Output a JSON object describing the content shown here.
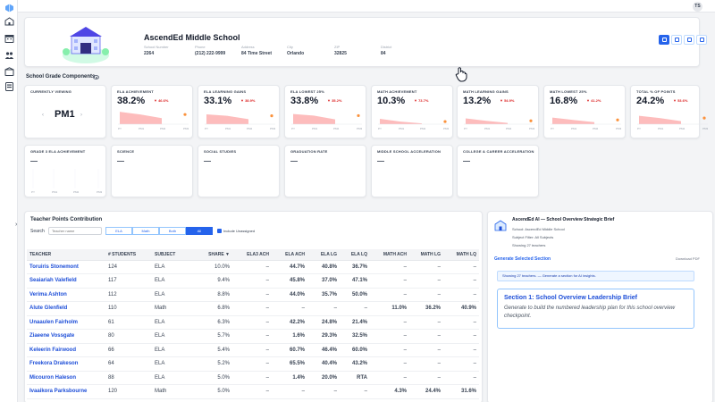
{
  "user": {
    "initials": "TS"
  },
  "school": {
    "name": "AscendEd Middle School",
    "info": [
      {
        "label": "School Number",
        "value": "2264"
      },
      {
        "label": "Phone",
        "value": "(212) 222-9999"
      },
      {
        "label": "Address",
        "value": "84 Time Street"
      },
      {
        "label": "City",
        "value": "Orlando"
      },
      {
        "label": "ZIP",
        "value": "32825"
      },
      {
        "label": "District",
        "value": "84"
      }
    ]
  },
  "components": {
    "title": "School Grade Components",
    "currently_viewing": {
      "label": "CURRENTLY VIEWING",
      "value": "PM1"
    },
    "metrics": [
      {
        "label": "ELA ACHIEVEMENT",
        "value": "38.2%",
        "delta": "▼ 46.6%",
        "trend": [
          49,
          38.2,
          24
        ],
        "last": 38.2
      },
      {
        "label": "ELA LEARNING GAINS",
        "value": "33.1%",
        "delta": "▼ 38.9%",
        "trend": [
          39,
          33.1,
          20
        ],
        "last": 33.1
      },
      {
        "label": "ELA LOWEST 25%",
        "value": "33.8%",
        "delta": "▼ 35.2%",
        "trend": [
          40,
          33.8,
          19
        ],
        "last": 33.8
      },
      {
        "label": "MATH ACHIEVEMENT",
        "value": "10.3%",
        "delta": "▼ 73.7%",
        "trend": [
          21,
          10.3,
          3
        ],
        "last": 10.3
      },
      {
        "label": "MATH LEARNING GAINS",
        "value": "13.2%",
        "delta": "▼ 54.9%",
        "trend": [
          23,
          13.2,
          5
        ],
        "last": 13.2
      },
      {
        "label": "MATH LOWEST 25%",
        "value": "16.8%",
        "delta": "▼ 41.2%",
        "trend": [
          26,
          16.8,
          8
        ],
        "last": 16.8
      },
      {
        "label": "TOTAL % OF POINTS",
        "value": "24.2%",
        "delta": "▼ 53.6%",
        "trend": [
          33,
          24.2,
          12
        ],
        "last": 24.2
      }
    ],
    "secondary": [
      {
        "label": "GRADE 3 ELA ACHIEVEMENT",
        "value": "—"
      },
      {
        "label": "SCIENCE",
        "value": "—"
      },
      {
        "label": "SOCIAL STUDIES",
        "value": "—"
      },
      {
        "label": "GRADUATION RATE",
        "value": "—"
      },
      {
        "label": "MIDDLE SCHOOL ACCELERATION",
        "value": "—"
      },
      {
        "label": "COLLEGE & CAREER ACCELERATION",
        "value": "—"
      }
    ],
    "x_labels": [
      "PY",
      "PM1",
      "PM2",
      "PM3"
    ]
  },
  "teacher_panel": {
    "title": "Teacher Points Contribution",
    "search_label": "Search",
    "search_placeholder": "Teacher name",
    "filters": [
      "ELA",
      "Math",
      "Both",
      "All"
    ],
    "active_filter": "All",
    "include_unassigned": "Include Unassigned",
    "columns": [
      "TEACHER",
      "# STUDENTS",
      "SUBJECT",
      "SHARE ▼",
      "ELA3 ACH",
      "ELA ACH",
      "ELA LG",
      "ELA LQ",
      "MATH ACH",
      "MATH LG",
      "MATH LQ"
    ],
    "rows": [
      {
        "name": "Toruiris Stonemont",
        "students": "124",
        "subject": "ELA",
        "share": "10.0%",
        "ela3": "–",
        "ela_ach": "44.7%",
        "ela_lg": "40.8%",
        "ela_lq": "36.7%",
        "math_ach": "–",
        "math_lg": "–",
        "math_lq": "–"
      },
      {
        "name": "Seaiariah Valefield",
        "students": "117",
        "subject": "ELA",
        "share": "9.4%",
        "ela3": "–",
        "ela_ach": "45.8%",
        "ela_lg": "37.0%",
        "ela_lq": "47.1%",
        "math_ach": "–",
        "math_lg": "–",
        "math_lq": "–"
      },
      {
        "name": "Verima Ashton",
        "students": "112",
        "subject": "ELA",
        "share": "8.8%",
        "ela3": "–",
        "ela_ach": "44.0%",
        "ela_lg": "35.7%",
        "ela_lq": "50.0%",
        "math_ach": "–",
        "math_lg": "–",
        "math_lq": "–"
      },
      {
        "name": "Alute Glenfield",
        "students": "110",
        "subject": "Math",
        "share": "6.8%",
        "ela3": "–",
        "ela_ach": "–",
        "ela_lg": "–",
        "ela_lq": "–",
        "math_ach": "11.0%",
        "math_lg": "36.2%",
        "math_lq": "40.9%"
      },
      {
        "name": "Unaaulen Fairholm",
        "students": "61",
        "subject": "ELA",
        "share": "6.3%",
        "ela3": "–",
        "ela_ach": "42.2%",
        "ela_lg": "24.8%",
        "ela_lq": "21.4%",
        "math_ach": "–",
        "math_lg": "–",
        "math_lq": "–"
      },
      {
        "name": "Ziaeene Vossgate",
        "students": "80",
        "subject": "ELA",
        "share": "5.7%",
        "ela3": "–",
        "ela_ach": "1.6%",
        "ela_lg": "29.3%",
        "ela_lq": "32.5%",
        "math_ach": "–",
        "math_lg": "–",
        "math_lq": "–"
      },
      {
        "name": "Keleerin Fairwood",
        "students": "66",
        "subject": "ELA",
        "share": "5.4%",
        "ela3": "–",
        "ela_ach": "60.7%",
        "ela_lg": "46.4%",
        "ela_lq": "60.0%",
        "math_ach": "–",
        "math_lg": "–",
        "math_lq": "–"
      },
      {
        "name": "Freekora Drakeson",
        "students": "64",
        "subject": "ELA",
        "share": "5.2%",
        "ela3": "–",
        "ela_ach": "65.5%",
        "ela_lg": "40.4%",
        "ela_lq": "43.2%",
        "math_ach": "–",
        "math_lg": "–",
        "math_lq": "–"
      },
      {
        "name": "Micouron Haleson",
        "students": "88",
        "subject": "ELA",
        "share": "5.0%",
        "ela3": "–",
        "ela_ach": "1.4%",
        "ela_lg": "20.0%",
        "ela_lq": "RTA",
        "math_ach": "–",
        "math_lg": "–",
        "math_lq": "–"
      },
      {
        "name": "Ivaaikora Parksbourne",
        "students": "120",
        "subject": "Math",
        "share": "5.0%",
        "ela3": "–",
        "ela_ach": "–",
        "ela_lg": "–",
        "ela_lq": "–",
        "math_ach": "4.3%",
        "math_lg": "24.4%",
        "math_lq": "31.6%"
      }
    ]
  },
  "ai_panel": {
    "title": "AscendEd AI — School Overview Strategic Brief",
    "school_line": "School: AscendEd Middle School",
    "filter_line": "Subject Filter: All Subjects",
    "count_line": "Showing 27 teachers",
    "generate_label": "Generate Selected Section",
    "download_label": "Download PDF",
    "notice": "Showing 27 teachers. — Generate a section for AI insights.",
    "section_title": "Section 1: School Overview Leadership Brief",
    "section_body": "Generate to build the numbered leadership plan for this school overview checkpoint."
  },
  "colors": {
    "accent": "#2563eb",
    "positive": "#16a34a",
    "negative": "#dc2626",
    "trend_fill": "#fca5a5",
    "trend_dot": "#fb923c"
  }
}
